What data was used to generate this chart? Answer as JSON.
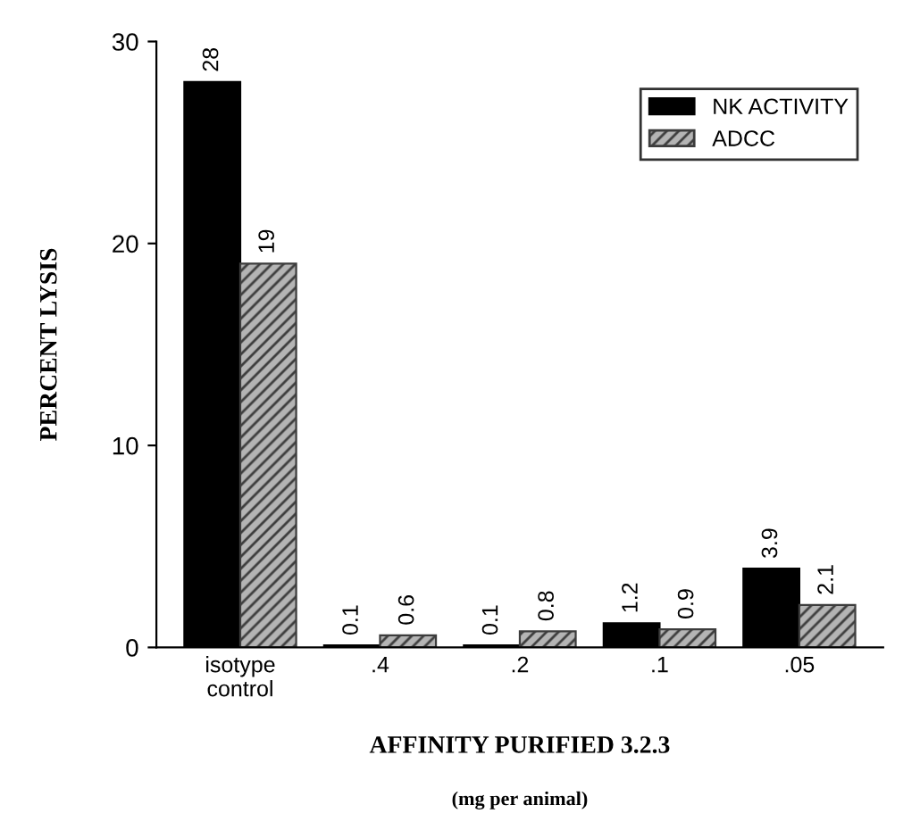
{
  "chart_data": {
    "type": "bar",
    "ylabel": "PERCENT LYSIS",
    "xlabel": "AFFINITY PURIFIED 3.2.3",
    "annotations": [
      "(mg per animal)"
    ],
    "categories": [
      "isotype\ncontrol",
      ".4",
      ".2",
      ".1",
      ".05"
    ],
    "series": [
      {
        "name": "NK ACTIVITY",
        "color": "#000000",
        "values": [
          28,
          0.1,
          0.1,
          1.2,
          3.9
        ]
      },
      {
        "name": "ADCC",
        "color": "#3c3c3c",
        "values": [
          19,
          0.6,
          0.8,
          0.9,
          2.1
        ]
      }
    ],
    "ylim": [
      0,
      30
    ],
    "yticks": [
      0,
      10,
      20,
      30
    ],
    "data_labels": true,
    "legend": "top right",
    "grid": false
  }
}
